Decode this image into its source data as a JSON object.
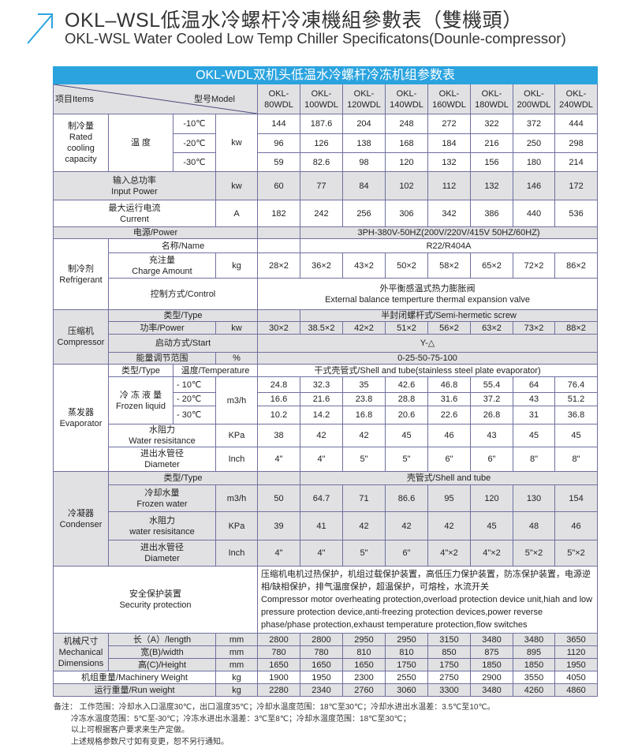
{
  "title_cn": "OKL–WSL低温水冷螺杆冷凍機組參數表（雙機頭）",
  "title_en": "OKL-WSL Water Cooled Low Temp Chiller Specificatons(Dounle-compressor)",
  "accent_color": "#2ba3df",
  "table_title": "OKL-WDL双机头低温水冷螺杆冷冻机组参数表",
  "header": {
    "items": "项目Items",
    "model": "型号Model"
  },
  "models": [
    "OKL- 80WDL",
    "OKL- 100WDL",
    "OKL- 120WDL",
    "OKL- 140WDL",
    "OKL- 160WDL",
    "OKL- 180WDL",
    "OKL- 200WDL",
    "OKL- 240WDL"
  ],
  "cooling": {
    "cn": "制冷量",
    "en": "Rated cooling capacity",
    "temp_label": "温 度",
    "unit": "kw",
    "rows": [
      {
        "temp": "-10℃",
        "values": [
          "144",
          "187.6",
          "204",
          "248",
          "272",
          "322",
          "372",
          "444"
        ]
      },
      {
        "temp": "-20℃",
        "values": [
          "96",
          "126",
          "138",
          "168",
          "184",
          "216",
          "250",
          "298"
        ]
      },
      {
        "temp": "-30℃",
        "values": [
          "59",
          "82.6",
          "98",
          "120",
          "132",
          "156",
          "180",
          "214"
        ]
      }
    ]
  },
  "input_power": {
    "cn": "输入总功率",
    "en": "Input Power",
    "unit": "kw",
    "values": [
      "60",
      "77",
      "84",
      "102",
      "112",
      "132",
      "146",
      "172"
    ]
  },
  "current": {
    "cn": "最大运行电流",
    "en": "Current",
    "unit": "A",
    "values": [
      "182",
      "242",
      "256",
      "306",
      "342",
      "386",
      "440",
      "536"
    ]
  },
  "power_supply": {
    "label": "电源/Power",
    "value": "3PH-380V-50HZ(200V/220V/415V  50HZ/60HZ)"
  },
  "refrigerant": {
    "cn": "制冷剂",
    "en": "Refrigerant",
    "name_label": "名称/Name",
    "name_value": "R22/R404A",
    "charge_cn": "充注量",
    "charge_en": "Charge Amount",
    "charge_unit": "kg",
    "charge_values": [
      "28×2",
      "36×2",
      "43×2",
      "50×2",
      "58×2",
      "65×2",
      "72×2",
      "86×2"
    ],
    "control_label": "控制方式/Control",
    "control_cn": "外平衡感温式热力膨胀阀",
    "control_en": "External balance temperture thermal expansion valve"
  },
  "compressor": {
    "cn": "压缩机",
    "en": "Compressor",
    "type_label": "类型/Type",
    "type_value": "半封闭螺杆式/Semi-hermetic screw",
    "power_label": "功率/Power",
    "power_unit": "kw",
    "power_values": [
      "30×2",
      "38.5×2",
      "42×2",
      "51×2",
      "56×2",
      "63×2",
      "73×2",
      "88×2"
    ],
    "start_label": "启动方式/Start",
    "start_value": "Y-△",
    "energy_label": "能量调节范围",
    "energy_unit": "%",
    "energy_value": "0-25-50-75-100"
  },
  "evaporator": {
    "cn": "蒸发器",
    "en": "Evaporator",
    "type_label": "类型/Type",
    "temp_label": "温度/Temperature",
    "type_value": "干式壳管式/Shell and tube(stainless steel plate evaporator)",
    "liquid_cn": "冷 冻 液 量",
    "liquid_en": "Frozen liquid",
    "unit": "m3/h",
    "rows": [
      {
        "temp": "- 10℃",
        "values": [
          "24.8",
          "32.3",
          "35",
          "42.6",
          "46.8",
          "55.4",
          "64",
          "76.4"
        ]
      },
      {
        "temp": "- 20℃",
        "values": [
          "16.6",
          "21.6",
          "23.8",
          "28.8",
          "31.6",
          "37.2",
          "43",
          "51.2"
        ]
      },
      {
        "temp": "- 30℃",
        "values": [
          "10.2",
          "14.2",
          "16.8",
          "20.6",
          "22.6",
          "26.8",
          "31",
          "36.8"
        ]
      }
    ],
    "res_cn": "水阻力",
    "res_en": "Water resisitance",
    "res_unit": "KPa",
    "res_values": [
      "38",
      "42",
      "42",
      "45",
      "46",
      "43",
      "45",
      "45"
    ],
    "dia_cn": "进出水管径",
    "dia_en": "Diameter",
    "dia_unit": "Inch",
    "dia_values": [
      "4\"",
      "4\"",
      "5\"",
      "5\"",
      "6\"",
      "6\"",
      "8\"",
      "8\""
    ]
  },
  "condenser": {
    "cn": "冷凝器",
    "en": "Condenser",
    "type_label": "类型/Type",
    "type_value": "壳管式/Shell and tube",
    "water_cn": "冷却水量",
    "water_en": "Frozen water",
    "water_unit": "m3/h",
    "water_values": [
      "50",
      "64.7",
      "71",
      "86.6",
      "95",
      "120",
      "130",
      "154"
    ],
    "res_cn": "水阻力",
    "res_en": "water resisitance",
    "res_unit": "KPa",
    "res_values": [
      "39",
      "41",
      "42",
      "42",
      "42",
      "45",
      "48",
      "46"
    ],
    "dia_cn": "进出水管径",
    "dia_en": "Diameter",
    "dia_unit": "Inch",
    "dia_values": [
      "4\"",
      "4\"",
      "5\"",
      "6\"",
      "4\"×2",
      "4\"×2",
      "5\"×2",
      "5\"×2"
    ]
  },
  "security": {
    "cn": "安全保护装置",
    "en": "Security protection",
    "desc_cn": "压缩机电机过热保护，机组过载保护装置，高低压力保护装置，防冻保护装置，电源逆相/缺相保护，排气温度保护，超温保护，可熔栓，水流开关",
    "desc_en": "Compressor motor overheating protection,overload protection device unit,hiah and low pressure protection device,anti-freezing protection devices,power reverse phase/phase protection,exhaust temperature protection,flow switches"
  },
  "dimensions": {
    "cn": "机械尺寸",
    "en1": "Mechanical",
    "en2": "Dimensions",
    "rows": [
      {
        "label": "长（A）/length",
        "unit": "mm",
        "values": [
          "2800",
          "2800",
          "2950",
          "2950",
          "3150",
          "3480",
          "3480",
          "3650"
        ]
      },
      {
        "label": "宽(B)/width",
        "unit": "mm",
        "values": [
          "780",
          "780",
          "810",
          "810",
          "850",
          "875",
          "895",
          "1120"
        ]
      },
      {
        "label": "高(C)/Height",
        "unit": "mm",
        "values": [
          "1650",
          "1650",
          "1650",
          "1750",
          "1750",
          "1850",
          "1850",
          "1950"
        ]
      }
    ]
  },
  "machinery_weight": {
    "label": "机组重量/Machinery Weight",
    "unit": "kg",
    "values": [
      "1900",
      "1950",
      "2300",
      "2550",
      "2750",
      "2900",
      "3550",
      "4050"
    ]
  },
  "run_weight": {
    "label": "运行重量/Run weight",
    "unit": "kg",
    "values": [
      "2280",
      "2340",
      "2760",
      "3060",
      "3300",
      "3480",
      "4260",
      "4860"
    ]
  },
  "notes": [
    "备注：  工作范围：冷却水入口温度30℃，出口温度35℃；冷却水温度范围：18℃至30℃；冷却水进出水温差：3.5℃至10℃。",
    "冷冻水温度范围：5℃至-30℃；冷冻水进出水温差：3℃至8℃；冷却水温度范围：18℃至30℃；",
    "以上可根据客户要求来生产定做。",
    "上述规格参数尺寸如有变更，恕不另行通知。"
  ]
}
